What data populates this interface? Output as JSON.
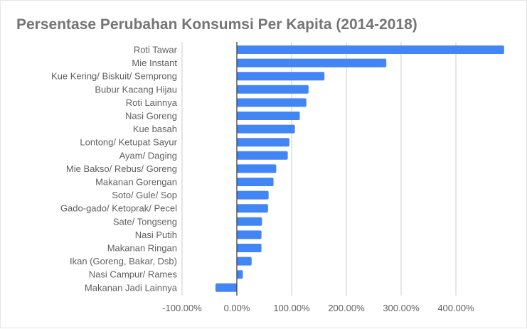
{
  "chart_data": {
    "type": "bar",
    "orientation": "horizontal",
    "title": "Persentase Perubahan Konsumsi Per Kapita (2014-2018)",
    "xlabel": "",
    "ylabel": "",
    "categories": [
      "Roti Tawar",
      "Mie Instant",
      "Kue Kering/ Biskuit/ Semprong",
      "Bubur Kacang Hijau",
      "Roti Lainnya",
      "Nasi Goreng",
      "Kue basah",
      "Lontong/ Ketupat Sayur",
      "Ayam/ Daging",
      "Mie Bakso/ Rebus/ Goreng",
      "Makanan Gorengan",
      "Soto/ Gule/ Sop",
      "Gado-gado/ Ketoprak/ Pecel",
      "Sate/ Tongseng",
      "Nasi Putih",
      "Makanan Ringan",
      "Ikan (Goreng, Bakar, Dsb)",
      "Nasi Campur/ Rames",
      "Makanan Jadi Lainnya"
    ],
    "values": [
      488,
      273,
      160,
      131,
      127,
      115,
      106,
      96,
      93,
      72,
      67,
      58,
      57,
      46,
      45,
      45,
      27,
      11,
      -39
    ],
    "xlim": [
      -100,
      500
    ],
    "xticks": [
      -100,
      0,
      100,
      200,
      300,
      400
    ],
    "xtick_labels": [
      "-100.00%",
      "0.00%",
      "100.00%",
      "200.00%",
      "300.00%",
      "400.00%"
    ],
    "grid": true,
    "legend": "none",
    "bar_color": "#4285f4",
    "gridline_color": "#cccccc",
    "zero_line_color": "#333333",
    "text_color": "#5f5f5f",
    "title_color": "#757575"
  }
}
